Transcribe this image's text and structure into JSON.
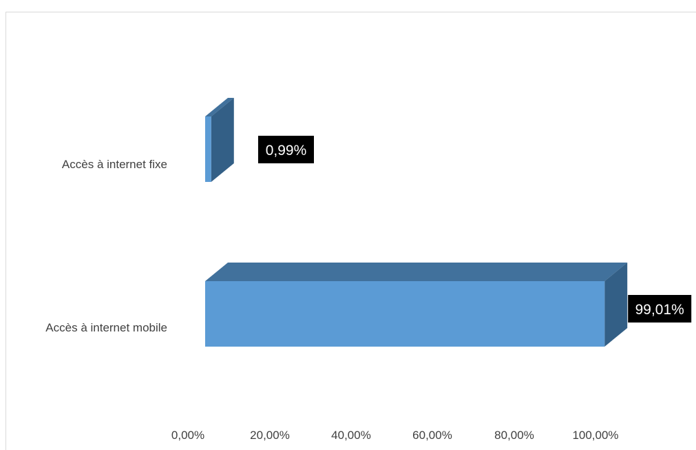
{
  "chart_data": {
    "type": "bar",
    "orientation": "horizontal",
    "style": "3d",
    "categories": [
      "Accès à internet fixe",
      "Accès à  internet mobile"
    ],
    "values": [
      0.99,
      99.01
    ],
    "data_labels": [
      "0,99%",
      "99,01%"
    ],
    "title": "",
    "xlabel": "",
    "ylabel": "",
    "xlim": [
      0,
      100
    ],
    "x_ticks": [
      0,
      20,
      40,
      60,
      80,
      100
    ],
    "x_tick_labels": [
      "0,00%",
      "20,00%",
      "40,00%",
      "60,00%",
      "80,00%",
      "100,00%"
    ],
    "grid": false,
    "legend": "none",
    "colors": {
      "bar_front": "#5b9bd5",
      "bar_top": "#41719c",
      "bar_side": "#335f86",
      "label_background": "#000000",
      "label_text": "#ffffff",
      "axis_text": "#404040",
      "frame_border": "#d9d9d9"
    }
  }
}
